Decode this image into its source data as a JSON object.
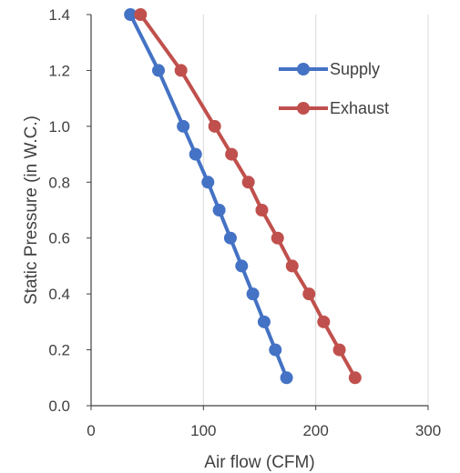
{
  "chart_data": {
    "type": "line",
    "xlabel": "Air flow (CFM)",
    "ylabel": "Static Pressure (in W.C.)",
    "xlim": [
      0,
      300
    ],
    "ylim": [
      0.0,
      1.4
    ],
    "xticks": [
      "0",
      "100",
      "200",
      "300"
    ],
    "yticks": [
      "0.0",
      "0.2",
      "0.4",
      "0.6",
      "0.8",
      "1.0",
      "1.2",
      "1.4"
    ],
    "grid": "vertical",
    "legend_position": "top-right",
    "series": [
      {
        "name": "Supply",
        "color": "#4472c4",
        "points": [
          [
            35,
            1.4
          ],
          [
            60,
            1.2
          ],
          [
            82,
            1.0
          ],
          [
            93,
            0.9
          ],
          [
            104,
            0.8
          ],
          [
            114,
            0.7
          ],
          [
            124,
            0.6
          ],
          [
            134,
            0.5
          ],
          [
            144,
            0.4
          ],
          [
            154,
            0.3
          ],
          [
            164,
            0.2
          ],
          [
            174,
            0.1
          ]
        ]
      },
      {
        "name": "Exhaust",
        "color": "#c0504d",
        "points": [
          [
            44,
            1.4
          ],
          [
            80,
            1.2
          ],
          [
            110,
            1.0
          ],
          [
            125,
            0.9
          ],
          [
            140,
            0.8
          ],
          [
            152,
            0.7
          ],
          [
            166,
            0.6
          ],
          [
            179,
            0.5
          ],
          [
            194,
            0.4
          ],
          [
            207,
            0.3
          ],
          [
            221,
            0.2
          ],
          [
            235,
            0.1
          ]
        ]
      }
    ]
  }
}
